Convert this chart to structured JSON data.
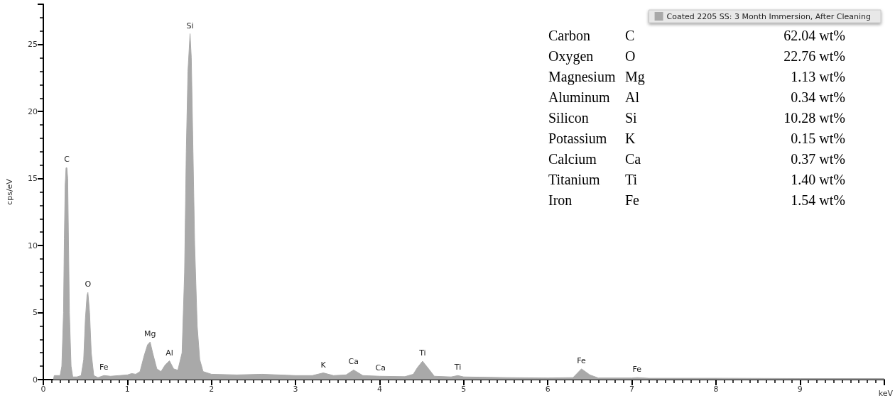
{
  "chart_data": {
    "type": "area",
    "ylabel": "cps/eV",
    "xlabel": "keV",
    "xlim": [
      0,
      10
    ],
    "xticks": [
      0,
      1,
      2,
      3,
      4,
      5,
      6,
      7,
      8,
      9
    ],
    "ylim": [
      0,
      28
    ],
    "yticks": [
      0,
      5,
      10,
      15,
      20,
      25
    ],
    "grid": false,
    "legend": "top right",
    "marker": "none",
    "series": [
      {
        "name": "Coated 2205 SS: 3 Month Immersion, After Cleaning",
        "color": "#a9a9a9",
        "x": [
          0.12,
          0.13,
          0.2,
          0.22,
          0.24,
          0.25,
          0.26,
          0.27,
          0.28,
          0.29,
          0.3,
          0.31,
          0.33,
          0.35,
          0.4,
          0.45,
          0.48,
          0.5,
          0.52,
          0.53,
          0.55,
          0.57,
          0.6,
          0.65,
          0.72,
          0.8,
          0.9,
          1.0,
          1.05,
          1.1,
          1.15,
          1.2,
          1.24,
          1.27,
          1.3,
          1.35,
          1.4,
          1.45,
          1.5,
          1.55,
          1.6,
          1.65,
          1.68,
          1.7,
          1.72,
          1.745,
          1.76,
          1.78,
          1.8,
          1.83,
          1.86,
          1.9,
          2.0,
          2.3,
          2.6,
          3.0,
          3.2,
          3.33,
          3.45,
          3.6,
          3.69,
          3.8,
          4.0,
          4.3,
          4.4,
          4.45,
          4.51,
          4.57,
          4.65,
          4.85,
          4.93,
          5.0,
          5.5,
          6.0,
          6.3,
          6.4,
          6.5,
          6.6,
          7.0,
          7.06,
          7.2,
          8.0,
          9.0,
          10.0
        ],
        "values": [
          0,
          0.3,
          0.3,
          1,
          5,
          10.5,
          14.5,
          15.8,
          15.8,
          15,
          10,
          5,
          1,
          0.2,
          0.2,
          0.3,
          1.5,
          4.5,
          6.3,
          6.5,
          5,
          2,
          0.3,
          0.15,
          0.3,
          0.25,
          0.3,
          0.35,
          0.45,
          0.4,
          0.6,
          1.8,
          2.6,
          2.8,
          2,
          0.8,
          0.6,
          1.1,
          1.4,
          0.8,
          0.7,
          2,
          8,
          17,
          23,
          25.8,
          24,
          17,
          10,
          4,
          1.5,
          0.6,
          0.4,
          0.35,
          0.4,
          0.3,
          0.3,
          0.5,
          0.3,
          0.35,
          0.72,
          0.3,
          0.25,
          0.22,
          0.4,
          0.9,
          1.37,
          0.9,
          0.25,
          0.2,
          0.3,
          0.2,
          0.15,
          0.12,
          0.15,
          0.8,
          0.35,
          0.12,
          0.12,
          0.15,
          0.1,
          0.1,
          0.08,
          0.08
        ]
      }
    ],
    "annotations": [
      {
        "text": "C",
        "x": 0.28,
        "y": 15.8
      },
      {
        "text": "O",
        "x": 0.53,
        "y": 6.5
      },
      {
        "text": "Fe",
        "x": 0.72,
        "y": 0.3
      },
      {
        "text": "Mg",
        "x": 1.27,
        "y": 2.8
      },
      {
        "text": "Al",
        "x": 1.5,
        "y": 1.4
      },
      {
        "text": "Si",
        "x": 1.745,
        "y": 25.8
      },
      {
        "text": "K",
        "x": 3.33,
        "y": 0.5
      },
      {
        "text": "Ca",
        "x": 3.69,
        "y": 0.72
      },
      {
        "text": "Ca",
        "x": 4.01,
        "y": 0.25
      },
      {
        "text": "Ti",
        "x": 4.51,
        "y": 1.37
      },
      {
        "text": "Ti",
        "x": 4.93,
        "y": 0.3
      },
      {
        "text": "Fe",
        "x": 6.4,
        "y": 0.8
      },
      {
        "text": "Fe",
        "x": 7.06,
        "y": 0.15
      },
      "Carbon",
      "C",
      "62.04 wt%",
      "Oxygen",
      "O",
      "22.76 wt%",
      "Magnesium",
      "Mg",
      "1.13 wt%",
      "Aluminum",
      "Al",
      "0.34 wt%",
      "Silicon",
      "Si",
      "10.28 wt%",
      "Potassium",
      "K",
      "0.15 wt%",
      "Calcium",
      "Ca",
      "0.37 wt%",
      "Titanium",
      "Ti",
      "1.40 wt%",
      "Iron",
      "Fe",
      "1.54 wt%"
    ]
  }
}
